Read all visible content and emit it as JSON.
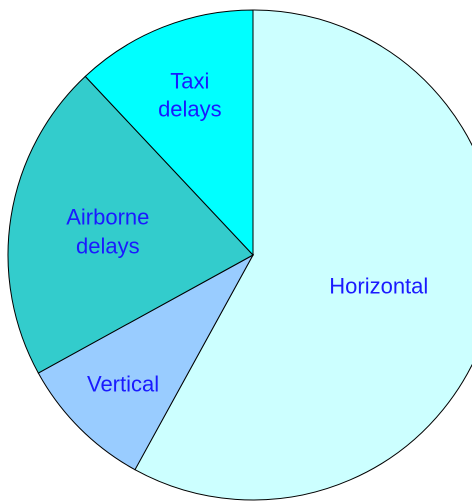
{
  "chart_data": {
    "type": "pie",
    "categories": [
      "Horizontal",
      "Vertical",
      "Airborne delays",
      "Taxi delays"
    ],
    "values": [
      58,
      9,
      21,
      12
    ],
    "colors": [
      "#ccffff",
      "#99ccff",
      "#33cccc",
      "#00ffff"
    ]
  }
}
